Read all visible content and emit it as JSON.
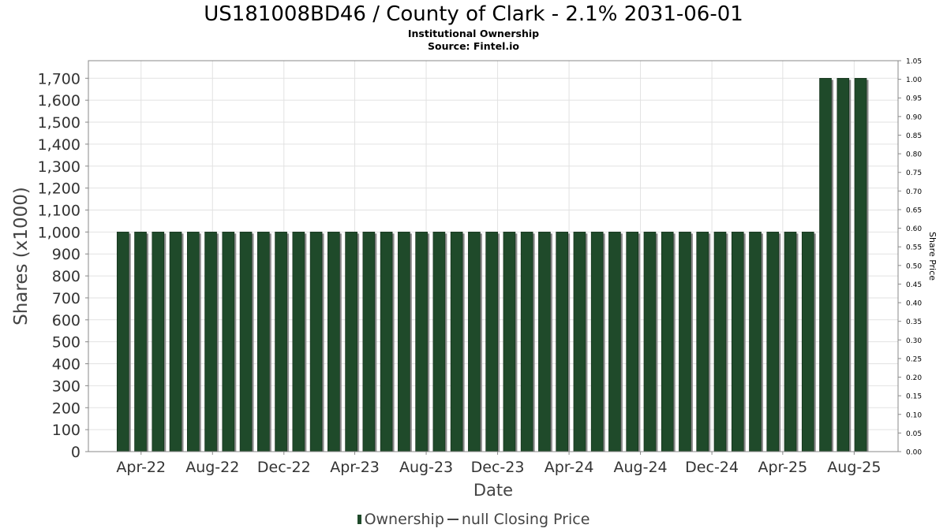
{
  "chart_data": {
    "type": "bar",
    "title": "US181008BD46 / County of Clark - 2.1% 2031-06-01",
    "subtitle_lines": [
      "Institutional Ownership",
      "Source: Fintel.io"
    ],
    "xlabel": "Date",
    "ylabel": "Shares (x1000)",
    "y2label": "Share Price",
    "ylim": [
      0,
      1780
    ],
    "y2lim": [
      0,
      1.05
    ],
    "yticks": [
      0,
      100,
      200,
      300,
      400,
      500,
      600,
      700,
      800,
      900,
      1000,
      1100,
      1200,
      1300,
      1400,
      1500,
      1600,
      1700
    ],
    "ytick_labels": [
      "0",
      "100",
      "200",
      "300",
      "400",
      "500",
      "600",
      "700",
      "800",
      "900",
      "1,000",
      "1,100",
      "1,200",
      "1,300",
      "1,400",
      "1,500",
      "1,600",
      "1,700"
    ],
    "y2ticks": [
      0,
      0.05,
      0.1,
      0.15,
      0.2,
      0.25,
      0.3,
      0.35,
      0.4,
      0.45,
      0.5,
      0.55,
      0.6,
      0.65,
      0.7,
      0.75,
      0.8,
      0.85,
      0.9,
      0.95,
      1.0,
      1.05
    ],
    "y2tick_labels": [
      "0.00",
      "0.05",
      "0.10",
      "0.15",
      "0.20",
      "0.25",
      "0.30",
      "0.35",
      "0.40",
      "0.45",
      "0.50",
      "0.55",
      "0.60",
      "0.65",
      "0.70",
      "0.75",
      "0.80",
      "0.85",
      "0.90",
      "0.95",
      "1.00",
      "1.05"
    ],
    "xticks": [
      "Apr-22",
      "Aug-22",
      "Dec-22",
      "Apr-23",
      "Aug-23",
      "Dec-23",
      "Apr-24",
      "Aug-24",
      "Dec-24",
      "Apr-25",
      "Aug-25"
    ],
    "x_range": [
      "2022-01-01",
      "2025-10-15"
    ],
    "x_tick_dates": [
      "2022-04-01",
      "2022-08-01",
      "2022-12-01",
      "2023-04-01",
      "2023-08-01",
      "2023-12-01",
      "2024-04-01",
      "2024-08-01",
      "2024-12-01",
      "2025-04-01",
      "2025-08-01"
    ],
    "bar_dates": [
      "2022-03-01",
      "2022-03-31",
      "2022-04-30",
      "2022-05-30",
      "2022-06-29",
      "2022-07-29",
      "2022-08-28",
      "2022-09-27",
      "2022-10-27",
      "2022-11-26",
      "2022-12-26",
      "2023-01-25",
      "2023-02-24",
      "2023-03-26",
      "2023-04-25",
      "2023-05-25",
      "2023-06-24",
      "2023-07-24",
      "2023-08-23",
      "2023-09-22",
      "2023-10-22",
      "2023-11-21",
      "2023-12-21",
      "2024-01-20",
      "2024-02-19",
      "2024-03-20",
      "2024-04-19",
      "2024-05-19",
      "2024-06-18",
      "2024-07-18",
      "2024-08-17",
      "2024-09-16",
      "2024-10-16",
      "2024-11-15",
      "2024-12-15",
      "2025-01-14",
      "2025-02-13",
      "2025-03-15",
      "2025-04-14",
      "2025-05-14",
      "2025-06-13",
      "2025-07-13",
      "2025-08-12"
    ],
    "series": [
      {
        "name": "Ownership",
        "type": "bar",
        "color": "#1f4a2a",
        "values": [
          1000,
          1000,
          1000,
          1000,
          1000,
          1000,
          1000,
          1000,
          1000,
          1000,
          1000,
          1000,
          1000,
          1000,
          1000,
          1000,
          1000,
          1000,
          1000,
          1000,
          1000,
          1000,
          1000,
          1000,
          1000,
          1000,
          1000,
          1000,
          1000,
          1000,
          1000,
          1000,
          1000,
          1000,
          1000,
          1000,
          1000,
          1000,
          1000,
          1000,
          1700,
          1700,
          1700
        ]
      },
      {
        "name": "null Closing Price",
        "type": "line",
        "color": "#444444",
        "values": []
      }
    ],
    "grid": true,
    "legend_position": "bottom-center"
  }
}
